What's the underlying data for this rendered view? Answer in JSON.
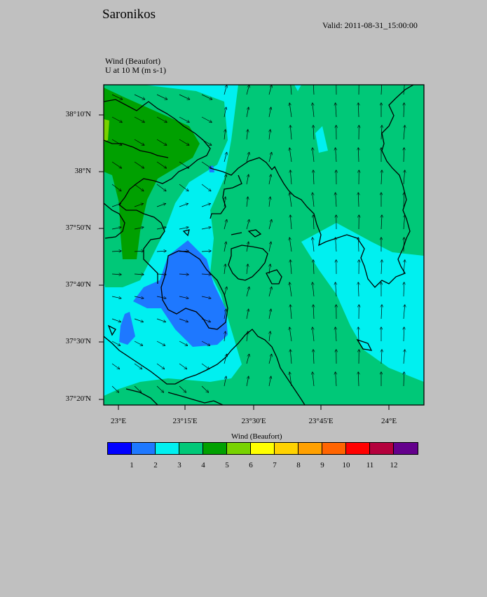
{
  "header": {
    "title": "Saronikos",
    "valid": "Valid: 2011-08-31_15:00:00",
    "field_line1": "Wind   (Beaufort)",
    "field_line2": "U at 10 M   (m s-1)"
  },
  "map": {
    "lat_labels": [
      "38°10'N",
      "38°N",
      "37°50'N",
      "37°40'N",
      "37°30'N",
      "37°20'N"
    ],
    "lon_labels": [
      "23°E",
      "23°15'E",
      "23°30'E",
      "23°45'E",
      "24°E"
    ],
    "fill_colors": {
      "beaufort_2": "#1e78ff",
      "beaufort_3": "#00f0f0",
      "beaufort_4": "#00c878",
      "beaufort_5": "#00a000",
      "beaufort_6": "#78d200",
      "beaufort_7": "#ffff00",
      "background": "#c0c0c0"
    }
  },
  "colorbar": {
    "title": "Wind  (Beaufort)",
    "colors": [
      "#0000ff",
      "#1e78ff",
      "#00f0f0",
      "#00c878",
      "#00a000",
      "#78d200",
      "#ffff00",
      "#ffd200",
      "#ffa000",
      "#ff6400",
      "#ff0000",
      "#b4003c",
      "#64008c"
    ],
    "labels": [
      "1",
      "2",
      "3",
      "4",
      "5",
      "6",
      "7",
      "8",
      "9",
      "10",
      "11",
      "12"
    ]
  }
}
